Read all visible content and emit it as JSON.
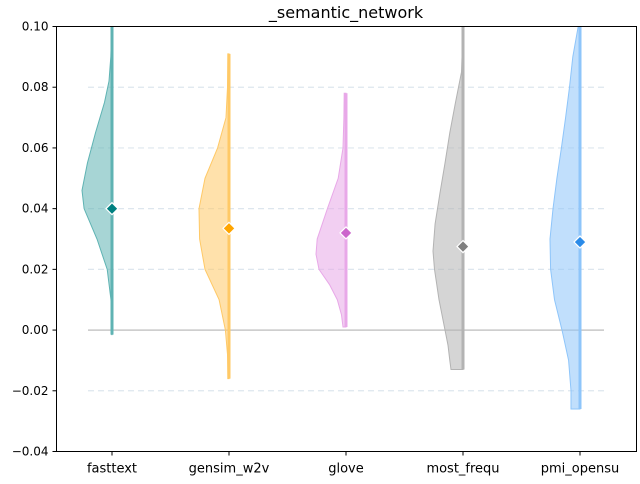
{
  "chart_data": {
    "type": "violin",
    "title": "_semantic_network",
    "xlabel": "",
    "ylabel": "",
    "ylim": [
      -0.04,
      0.1
    ],
    "yticks": [
      -0.04,
      -0.02,
      0.0,
      0.02,
      0.04,
      0.06,
      0.08,
      0.1
    ],
    "ytick_labels": [
      "−0.04",
      "−0.02",
      "0.00",
      "0.02",
      "0.04",
      "0.06",
      "0.08",
      "0.10"
    ],
    "grid": true,
    "reference_line": 0.0,
    "categories": [
      "fasttext",
      "gensim_w2v",
      "glove",
      "most_frequ",
      "pmi_opensu"
    ],
    "series": [
      {
        "category": "fasttext",
        "color": "#5fb3b3",
        "marker_color": "#008080",
        "mean": 0.04,
        "min": -0.0015,
        "max": 0.1,
        "profile": [
          [
            -0.0015,
            0.008
          ],
          [
            0.0,
            0.012
          ],
          [
            0.01,
            0.035
          ],
          [
            0.02,
            0.16
          ],
          [
            0.03,
            0.5
          ],
          [
            0.04,
            0.93
          ],
          [
            0.046,
            1.0
          ],
          [
            0.055,
            0.82
          ],
          [
            0.065,
            0.55
          ],
          [
            0.075,
            0.25
          ],
          [
            0.082,
            0.1
          ],
          [
            0.09,
            0.04
          ],
          [
            0.1,
            0.01
          ]
        ]
      },
      {
        "category": "gensim_w2v",
        "color": "#ffc966",
        "marker_color": "#ffa500",
        "mean": 0.0335,
        "min": -0.016,
        "max": 0.091,
        "profile": [
          [
            -0.016,
            0.04
          ],
          [
            -0.008,
            0.05
          ],
          [
            0.0,
            0.12
          ],
          [
            0.01,
            0.33
          ],
          [
            0.02,
            0.8
          ],
          [
            0.03,
            0.98
          ],
          [
            0.04,
            1.0
          ],
          [
            0.05,
            0.8
          ],
          [
            0.06,
            0.38
          ],
          [
            0.07,
            0.1
          ],
          [
            0.08,
            0.05
          ],
          [
            0.091,
            0.04
          ]
        ]
      },
      {
        "category": "glove",
        "color": "#e8a8e8",
        "marker_color": "#cc66cc",
        "mean": 0.032,
        "min": 0.001,
        "max": 0.078,
        "profile": [
          [
            0.001,
            0.1
          ],
          [
            0.005,
            0.15
          ],
          [
            0.01,
            0.29
          ],
          [
            0.015,
            0.55
          ],
          [
            0.02,
            0.9
          ],
          [
            0.025,
            1.0
          ],
          [
            0.03,
            0.96
          ],
          [
            0.04,
            0.62
          ],
          [
            0.05,
            0.26
          ],
          [
            0.06,
            0.1
          ],
          [
            0.07,
            0.07
          ],
          [
            0.078,
            0.06
          ]
        ]
      },
      {
        "category": "most_frequ",
        "color": "#b3b3b3",
        "marker_color": "#808080",
        "mean": 0.0275,
        "min": -0.013,
        "max": 0.1,
        "profile": [
          [
            -0.013,
            0.4
          ],
          [
            -0.01,
            0.44
          ],
          [
            -0.005,
            0.5
          ],
          [
            0.0,
            0.6
          ],
          [
            0.01,
            0.8
          ],
          [
            0.02,
            0.95
          ],
          [
            0.026,
            1.0
          ],
          [
            0.035,
            0.93
          ],
          [
            0.045,
            0.77
          ],
          [
            0.055,
            0.6
          ],
          [
            0.065,
            0.44
          ],
          [
            0.075,
            0.25
          ],
          [
            0.085,
            0.05
          ],
          [
            0.1,
            0.0
          ]
        ]
      },
      {
        "category": "pmi_opensu",
        "color": "#8ec5fa",
        "marker_color": "#2b8be8",
        "mean": 0.029,
        "min": -0.026,
        "max": 0.1,
        "profile": [
          [
            -0.026,
            0.3
          ],
          [
            -0.02,
            0.3
          ],
          [
            -0.01,
            0.38
          ],
          [
            0.0,
            0.6
          ],
          [
            0.01,
            0.85
          ],
          [
            0.02,
            0.98
          ],
          [
            0.03,
            1.0
          ],
          [
            0.04,
            0.9
          ],
          [
            0.05,
            0.77
          ],
          [
            0.06,
            0.62
          ],
          [
            0.07,
            0.48
          ],
          [
            0.08,
            0.35
          ],
          [
            0.09,
            0.24
          ],
          [
            0.1,
            0.06
          ]
        ]
      }
    ]
  }
}
